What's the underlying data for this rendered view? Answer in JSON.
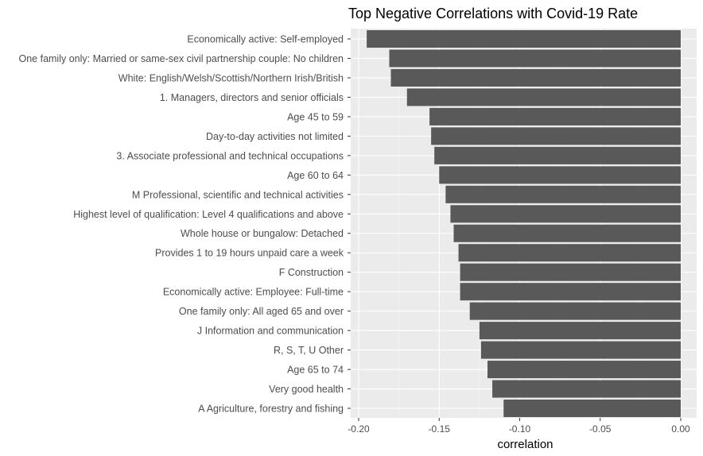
{
  "chart_data": {
    "type": "bar",
    "orientation": "horizontal",
    "title": "Top Negative Correlations with Covid-19 Rate",
    "xlabel": "correlation",
    "ylabel": "",
    "xlim": [
      -0.2,
      0.0
    ],
    "x_ticks": [
      "-0.20",
      "-0.15",
      "-0.10",
      "-0.05",
      "0.00"
    ],
    "x_tick_values": [
      -0.2,
      -0.15,
      -0.1,
      -0.05,
      0.0
    ],
    "grid": true,
    "legend": "none",
    "categories": [
      "Economically active: Self-employed",
      "One family only: Married or same-sex civil partnership couple: No children",
      "White: English/Welsh/Scottish/Northern Irish/British",
      "1. Managers, directors and senior officials",
      "Age 45 to 59",
      "Day-to-day activities not limited",
      "3. Associate professional and technical occupations",
      "Age 60 to 64",
      "M Professional, scientific and technical activities",
      "Highest level of qualification: Level 4 qualifications and above",
      "Whole house or bungalow: Detached",
      "Provides 1 to 19 hours unpaid care a week",
      "F Construction",
      "Economically active: Employee: Full-time",
      "One family only: All aged 65 and over",
      "J Information and communication",
      "R, S, T, U Other",
      "Age 65 to 74",
      "Very good health",
      "A Agriculture, forestry and fishing"
    ],
    "values": [
      -0.195,
      -0.181,
      -0.18,
      -0.17,
      -0.156,
      -0.155,
      -0.153,
      -0.15,
      -0.146,
      -0.143,
      -0.141,
      -0.138,
      -0.137,
      -0.137,
      -0.131,
      -0.125,
      -0.124,
      -0.12,
      -0.117,
      -0.11
    ],
    "colors": {
      "bar": "#595959",
      "panel": "#ebebeb",
      "grid_major": "#ffffff",
      "grid_minor": "#f5f5f5",
      "tick_text": "#4d4d4d",
      "title": "#000000"
    }
  }
}
